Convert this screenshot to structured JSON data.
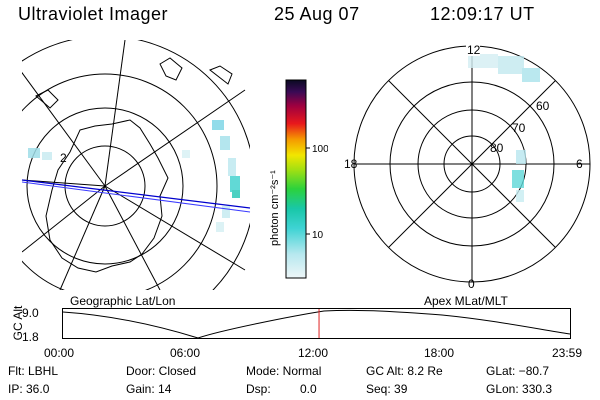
{
  "header": {
    "instrument": "Ultraviolet Imager",
    "date": "25 Aug 07",
    "time": "12:09:17 UT"
  },
  "geo_panel": {
    "caption": "Geographic Lat/Lon",
    "ring_label": "2"
  },
  "apex_panel": {
    "caption": "Apex MLat/MLT",
    "lat_labels": [
      "60",
      "70",
      "80"
    ],
    "mlt_labels": {
      "top": "12",
      "left": "18",
      "right": "6",
      "bottom": "0"
    }
  },
  "colorbar": {
    "unit_label": "photon cm⁻²s⁻¹",
    "ticks": [
      "100",
      "10"
    ]
  },
  "timeline": {
    "ylabel": "GC Alt",
    "ytick_top": "9.0",
    "ytick_bottom": "1.8",
    "xticks": [
      "00:00",
      "06:00",
      "12:00",
      "18:00",
      "23:59"
    ],
    "current_time_fraction": 0.505
  },
  "status": {
    "flt": "Flt: LBHL",
    "ip": "IP: 36.0",
    "door": "Door: Closed",
    "gain": "Gain: 14",
    "mode": "Mode: Normal",
    "dsp_label": "Dsp:",
    "dsp_value": "0.0",
    "gc_alt": "GC Alt: 8.2 Re",
    "seq": "Seq: 39",
    "glat": "GLat: −80.7",
    "glon": "GLon: 330.3"
  }
}
